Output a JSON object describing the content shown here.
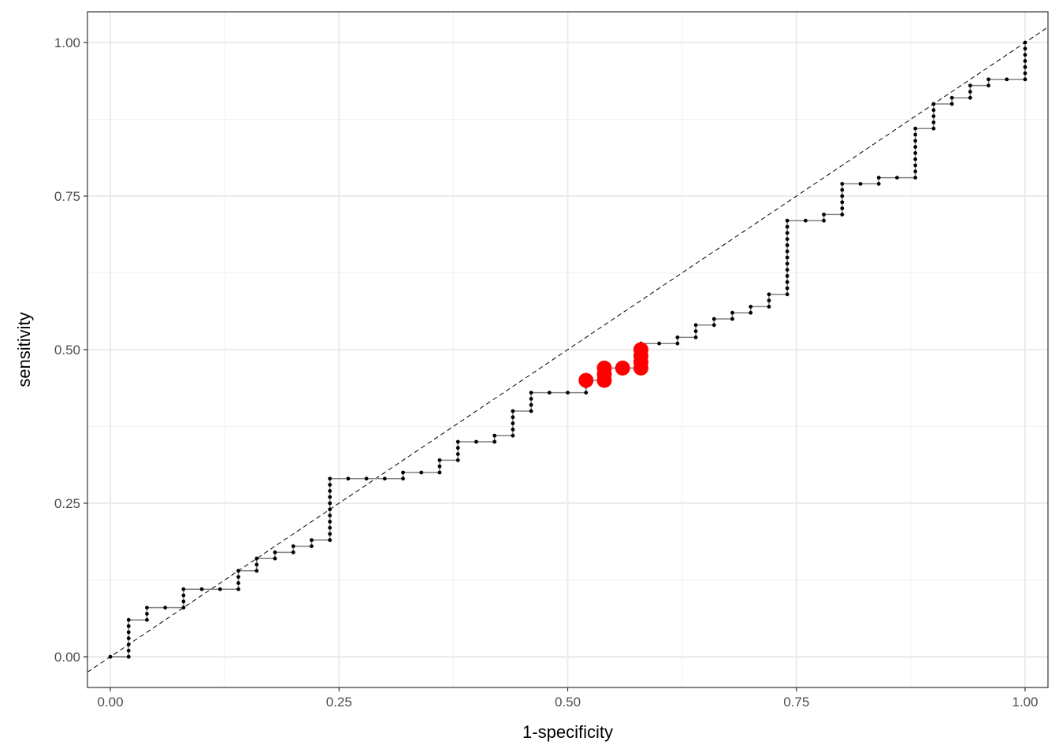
{
  "chart_data": {
    "type": "line",
    "xlabel": "1-specificity",
    "ylabel": "sensitivity",
    "xlim": [
      -0.025,
      1.025
    ],
    "ylim": [
      -0.05,
      1.05
    ],
    "x_ticks": [
      "0.00",
      "0.25",
      "0.50",
      "0.75",
      "1.00"
    ],
    "y_ticks": [
      "0.00",
      "0.25",
      "0.50",
      "0.75",
      "1.00"
    ],
    "grid": true,
    "reference_line": {
      "from": [
        0,
        0
      ],
      "to": [
        1,
        1
      ],
      "style": "dashed"
    },
    "roc_steps": [
      [
        0.0,
        0.0
      ],
      [
        0.02,
        0.0
      ],
      [
        0.02,
        0.06
      ],
      [
        0.04,
        0.06
      ],
      [
        0.04,
        0.08
      ],
      [
        0.08,
        0.08
      ],
      [
        0.08,
        0.11
      ],
      [
        0.14,
        0.11
      ],
      [
        0.14,
        0.14
      ],
      [
        0.16,
        0.14
      ],
      [
        0.16,
        0.16
      ],
      [
        0.18,
        0.16
      ],
      [
        0.18,
        0.17
      ],
      [
        0.2,
        0.17
      ],
      [
        0.2,
        0.18
      ],
      [
        0.22,
        0.18
      ],
      [
        0.22,
        0.19
      ],
      [
        0.24,
        0.19
      ],
      [
        0.24,
        0.29
      ],
      [
        0.32,
        0.29
      ],
      [
        0.32,
        0.3
      ],
      [
        0.36,
        0.3
      ],
      [
        0.36,
        0.32
      ],
      [
        0.38,
        0.32
      ],
      [
        0.38,
        0.35
      ],
      [
        0.42,
        0.35
      ],
      [
        0.42,
        0.36
      ],
      [
        0.44,
        0.36
      ],
      [
        0.44,
        0.4
      ],
      [
        0.46,
        0.4
      ],
      [
        0.46,
        0.43
      ],
      [
        0.52,
        0.43
      ],
      [
        0.52,
        0.45
      ],
      [
        0.54,
        0.45
      ],
      [
        0.54,
        0.47
      ],
      [
        0.58,
        0.47
      ],
      [
        0.58,
        0.51
      ],
      [
        0.62,
        0.51
      ],
      [
        0.62,
        0.52
      ],
      [
        0.64,
        0.52
      ],
      [
        0.64,
        0.54
      ],
      [
        0.66,
        0.54
      ],
      [
        0.66,
        0.55
      ],
      [
        0.68,
        0.55
      ],
      [
        0.68,
        0.56
      ],
      [
        0.7,
        0.56
      ],
      [
        0.7,
        0.57
      ],
      [
        0.72,
        0.57
      ],
      [
        0.72,
        0.59
      ],
      [
        0.74,
        0.59
      ],
      [
        0.74,
        0.71
      ],
      [
        0.78,
        0.71
      ],
      [
        0.78,
        0.72
      ],
      [
        0.8,
        0.72
      ],
      [
        0.8,
        0.77
      ],
      [
        0.84,
        0.77
      ],
      [
        0.84,
        0.78
      ],
      [
        0.88,
        0.78
      ],
      [
        0.88,
        0.86
      ],
      [
        0.9,
        0.86
      ],
      [
        0.9,
        0.9
      ],
      [
        0.92,
        0.9
      ],
      [
        0.92,
        0.91
      ],
      [
        0.94,
        0.91
      ],
      [
        0.94,
        0.93
      ],
      [
        0.96,
        0.93
      ],
      [
        0.96,
        0.94
      ],
      [
        1.0,
        0.94
      ],
      [
        1.0,
        1.0
      ]
    ],
    "highlight_points": [
      [
        0.52,
        0.45
      ],
      [
        0.54,
        0.45
      ],
      [
        0.54,
        0.46
      ],
      [
        0.54,
        0.47
      ],
      [
        0.56,
        0.47
      ],
      [
        0.58,
        0.47
      ],
      [
        0.58,
        0.48
      ],
      [
        0.58,
        0.49
      ],
      [
        0.58,
        0.5
      ]
    ],
    "highlight_color": "#ff0000",
    "line_color": "#808080",
    "point_color": "#000000"
  }
}
